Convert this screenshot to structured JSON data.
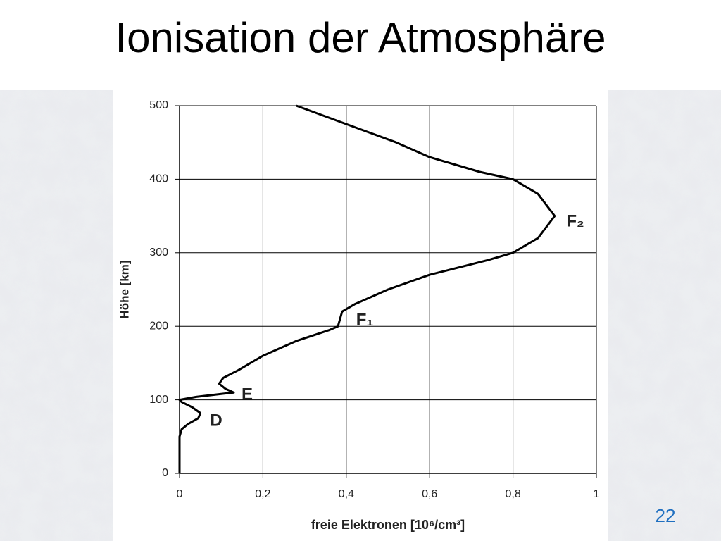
{
  "chart_data": {
    "type": "line",
    "title": "Ionisation der Atmosphäre",
    "x_label": "freie Elektronen [10⁶/cm³]",
    "y_label": "Höhe [km]",
    "x": [
      0,
      0,
      0,
      0.005,
      0.02,
      0.045,
      0.05,
      0.03,
      0.005,
      0,
      0.04,
      0.1,
      0.13,
      0.11,
      0.095,
      0.105,
      0.14,
      0.2,
      0.28,
      0.36,
      0.38,
      0.39,
      0.42,
      0.5,
      0.6,
      0.67,
      0.74,
      0.8,
      0.86,
      0.9,
      0.86,
      0.8,
      0.72,
      0.66,
      0.6,
      0.52,
      0.4,
      0.28
    ],
    "values": [
      0,
      20,
      50,
      60,
      67,
      75,
      82,
      90,
      97,
      100,
      104,
      108,
      110,
      115,
      122,
      130,
      140,
      160,
      180,
      195,
      200,
      220,
      230,
      250,
      270,
      280,
      290,
      300,
      320,
      350,
      380,
      400,
      410,
      420,
      430,
      450,
      475,
      500
    ],
    "color": "#000000",
    "xlim": [
      0,
      1
    ],
    "ylim": [
      0,
      500
    ],
    "xticks": [
      0,
      {
        "value": 0.2,
        "label": "0,2"
      },
      {
        "value": 0.4,
        "label": "0,4"
      },
      {
        "value": 0.6,
        "label": "0,6"
      },
      {
        "value": 0.8,
        "label": "0,8"
      },
      1
    ],
    "yticks": [
      0,
      100,
      200,
      300,
      400,
      500
    ],
    "grid": true,
    "annotations": [
      "F₂",
      "F₁",
      "E",
      "D"
    ]
  },
  "page_number": "22"
}
